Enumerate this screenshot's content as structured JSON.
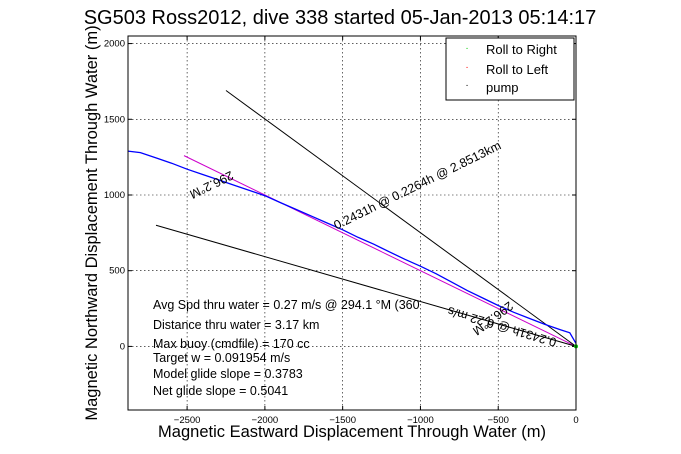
{
  "chart_data": {
    "type": "line",
    "title": "SG503 Ross2012, dive 338 started 05-Jan-2013 05:14:17",
    "xlabel": "Magnetic Eastward Displacement Through Water (m)",
    "ylabel": "Magnetic Northward Displacement Through Water (m)",
    "xlim": [
      -2880,
      0
    ],
    "ylim": [
      -420,
      2050
    ],
    "x_ticks": [
      -2500,
      -2000,
      -1500,
      -1000,
      -500,
      0
    ],
    "x_tick_labels": [
      "−2500",
      "−2000",
      "−1500",
      "−1000",
      "−500",
      "0"
    ],
    "y_ticks": [
      0,
      500,
      1000,
      1500,
      2000
    ],
    "y_tick_labels": [
      "0",
      "500",
      "1000",
      "1500",
      "2000"
    ],
    "grid": true,
    "legend_position": "top-right",
    "legend": [
      {
        "label": "Roll to Right",
        "color": "#00cc00"
      },
      {
        "label": "Roll to Left",
        "color": "#ff0000"
      },
      {
        "label": "pump",
        "color": "#000000"
      }
    ],
    "series": [
      {
        "name": "track",
        "color": "#0000ff",
        "x": [
          -2880,
          -2800,
          -2700,
          -2600,
          -2500,
          -2400,
          -2300,
          -2200,
          -2100,
          -2000,
          -1900,
          -1800,
          -1700,
          -1600,
          -1500,
          -1400,
          -1300,
          -1200,
          -1100,
          -1000,
          -900,
          -800,
          -700,
          -600,
          -500,
          -400,
          -300,
          -200,
          -100,
          -40,
          0
        ],
        "y": [
          1290,
          1280,
          1245,
          1210,
          1170,
          1135,
          1100,
          1065,
          1030,
          995,
          950,
          905,
          860,
          815,
          770,
          720,
          675,
          625,
          575,
          530,
          480,
          425,
          370,
          320,
          270,
          225,
          185,
          145,
          110,
          90,
          20
        ]
      }
    ],
    "reference_lines": [
      {
        "x": [
          -2520,
          0
        ],
        "y": [
          1260,
          0
        ],
        "color": "#cc00cc",
        "label": "296.2°M",
        "label_angle": 153.8
      },
      {
        "x": [
          -2250,
          0
        ],
        "y": [
          1690,
          0
        ],
        "color": "#000000",
        "label": "296.2°M",
        "label_angle": 143
      },
      {
        "x": [
          -2700,
          0
        ],
        "y": [
          800,
          0
        ],
        "color": "#000000",
        "label": "0.2431h @ 0.22 m/s",
        "label_angle": 16.5
      }
    ],
    "annotations": [
      {
        "text": "0.2431h @ 0.2264h @ 2.8513km"
      }
    ],
    "stats": [
      "Avg Spd thru water =  0.27 m/s @ 294.1   °M (360",
      "Distance thru water =  3.17 km",
      "Max buoy (cmdfile) = 170 cc",
      "Target w = 0.091954 m/s",
      "Model glide slope = 0.3783",
      "Net glide slope = 0.5041"
    ]
  }
}
